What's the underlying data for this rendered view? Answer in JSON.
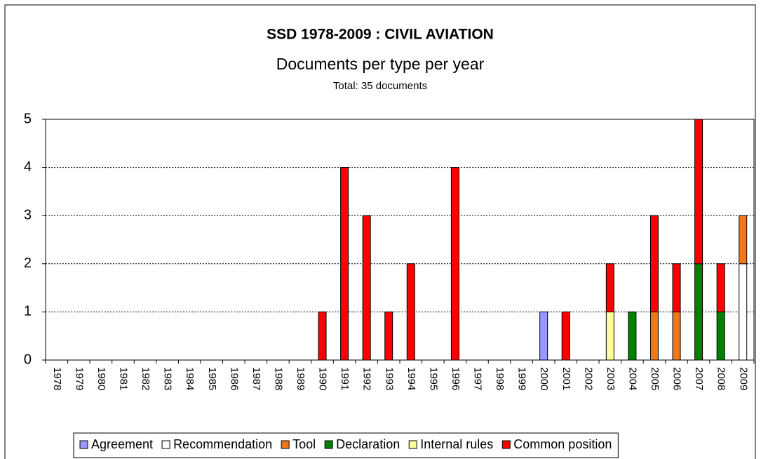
{
  "chart_data": {
    "type": "stacked_bar",
    "title": "SSD 1978-2009 : CIVIL AVIATION",
    "subtitle": "Documents per type per year",
    "note": "Total: 35 documents",
    "categories": [
      "1978",
      "1979",
      "1980",
      "1981",
      "1982",
      "1983",
      "1984",
      "1985",
      "1986",
      "1987",
      "1988",
      "1989",
      "1990",
      "1991",
      "1992",
      "1993",
      "1994",
      "1995",
      "1996",
      "1997",
      "1998",
      "1999",
      "2000",
      "2001",
      "2002",
      "2003",
      "2004",
      "2005",
      "2006",
      "2007",
      "2008",
      "2009"
    ],
    "series": [
      {
        "name": "Agreement",
        "color": "#9999ff",
        "values": [
          0,
          0,
          0,
          0,
          0,
          0,
          0,
          0,
          0,
          0,
          0,
          0,
          0,
          0,
          0,
          0,
          0,
          0,
          0,
          0,
          0,
          0,
          1,
          0,
          0,
          0,
          0,
          0,
          0,
          0,
          0,
          0
        ]
      },
      {
        "name": "Recommendation",
        "color": "#ffffff",
        "values": [
          0,
          0,
          0,
          0,
          0,
          0,
          0,
          0,
          0,
          0,
          0,
          0,
          0,
          0,
          0,
          0,
          0,
          0,
          0,
          0,
          0,
          0,
          0,
          0,
          0,
          0,
          0,
          0,
          0,
          0,
          0,
          2
        ]
      },
      {
        "name": "Tool",
        "color": "#f07818",
        "values": [
          0,
          0,
          0,
          0,
          0,
          0,
          0,
          0,
          0,
          0,
          0,
          0,
          0,
          0,
          0,
          0,
          0,
          0,
          0,
          0,
          0,
          0,
          0,
          0,
          0,
          0,
          0,
          1,
          1,
          0,
          0,
          1
        ]
      },
      {
        "name": "Declaration",
        "color": "#008000",
        "values": [
          0,
          0,
          0,
          0,
          0,
          0,
          0,
          0,
          0,
          0,
          0,
          0,
          0,
          0,
          0,
          0,
          0,
          0,
          0,
          0,
          0,
          0,
          0,
          0,
          0,
          0,
          1,
          0,
          0,
          2,
          1,
          0
        ]
      },
      {
        "name": "Internal rules",
        "color": "#ffff99",
        "values": [
          0,
          0,
          0,
          0,
          0,
          0,
          0,
          0,
          0,
          0,
          0,
          0,
          0,
          0,
          0,
          0,
          0,
          0,
          0,
          0,
          0,
          0,
          0,
          0,
          0,
          1,
          0,
          0,
          0,
          0,
          0,
          0
        ]
      },
      {
        "name": "Common position",
        "color": "#ff0000",
        "values": [
          0,
          0,
          0,
          0,
          0,
          0,
          0,
          0,
          0,
          0,
          0,
          0,
          1,
          4,
          3,
          1,
          2,
          0,
          4,
          0,
          0,
          0,
          0,
          1,
          0,
          1,
          0,
          2,
          1,
          3,
          1,
          0
        ]
      }
    ],
    "ylim": [
      0,
      5
    ],
    "yticks": [
      0,
      1,
      2,
      3,
      4,
      5
    ],
    "grid": true,
    "legend": "bottom"
  }
}
